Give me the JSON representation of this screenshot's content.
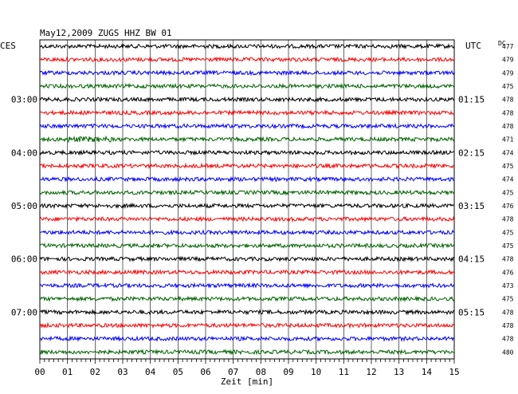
{
  "header": {
    "title": "May12,2009   ZUGS HHZ BW 01",
    "left_label": "CES",
    "right_label": "UTC",
    "dc_label": "DC"
  },
  "colors": {
    "trace_cycle": [
      "#000000",
      "#ff0000",
      "#0000ff",
      "#006400"
    ],
    "grid": "#000000",
    "background": "#ffffff"
  },
  "chart_data": {
    "type": "line",
    "title": "May12,2009   ZUGS HHZ BW 01",
    "xlabel": "Zeit [min]",
    "ylabel": "",
    "x_range": [
      0,
      15
    ],
    "x_ticks": [
      "00",
      "01",
      "02",
      "03",
      "04",
      "05",
      "06",
      "07",
      "08",
      "09",
      "10",
      "11",
      "12",
      "13",
      "14",
      "15"
    ],
    "grid": true,
    "trace_count": 24,
    "trace_interval_min": 15,
    "left_time_labels": [
      {
        "trace": 4,
        "label": "03:00"
      },
      {
        "trace": 8,
        "label": "04:00"
      },
      {
        "trace": 12,
        "label": "05:00"
      },
      {
        "trace": 16,
        "label": "06:00"
      },
      {
        "trace": 20,
        "label": "07:00"
      }
    ],
    "right_time_labels": [
      {
        "trace": 4,
        "label": "01:15"
      },
      {
        "trace": 8,
        "label": "02:15"
      },
      {
        "trace": 12,
        "label": "03:15"
      },
      {
        "trace": 16,
        "label": "04:15"
      },
      {
        "trace": 20,
        "label": "05:15"
      }
    ],
    "dc_values": [
      "477",
      "479",
      "479",
      "475",
      "478",
      "478",
      "478",
      "471",
      "474",
      "475",
      "474",
      "475",
      "476",
      "478",
      "475",
      "475",
      "478",
      "476",
      "473",
      "475",
      "478",
      "478",
      "478",
      "480"
    ]
  }
}
